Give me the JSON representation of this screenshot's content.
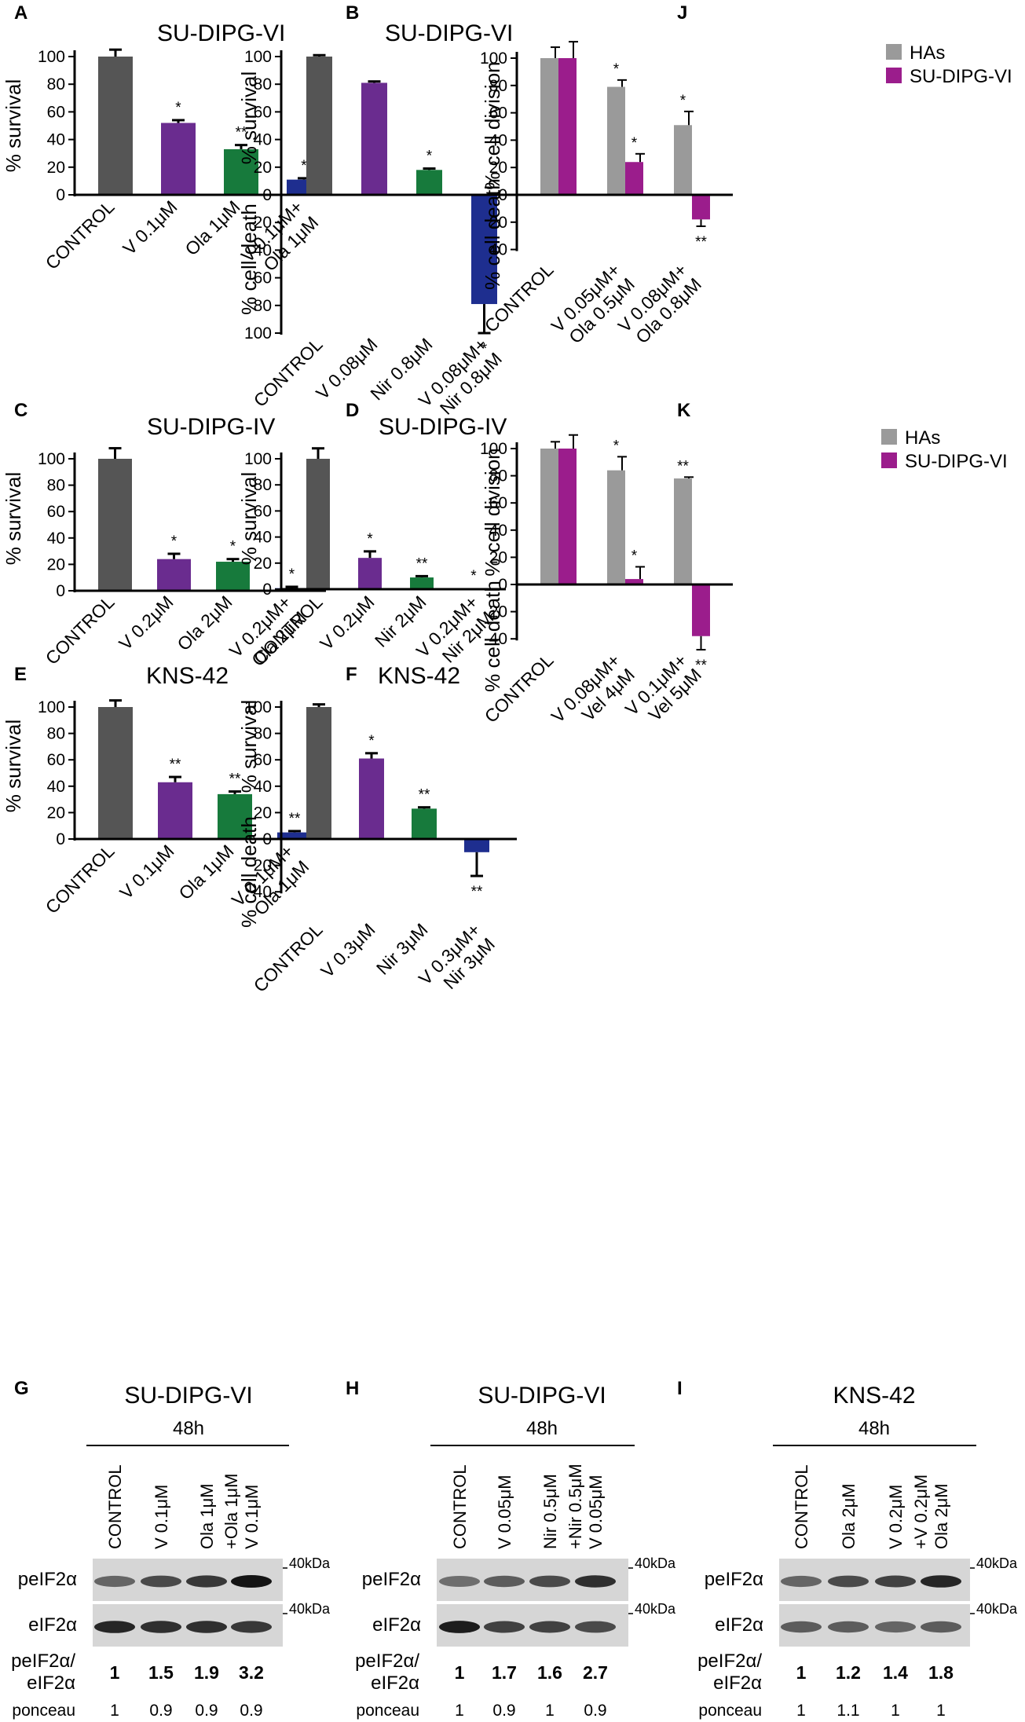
{
  "figure": {
    "units": {
      "uM": "μM",
      "alpha": "α"
    }
  },
  "chart_data": [
    {
      "panel": "A",
      "type": "bar",
      "title": "SU-DIPG-VI",
      "ylabel": "% survival",
      "ylim": [
        0,
        100
      ],
      "yticks": [
        0,
        20,
        40,
        60,
        80,
        100
      ],
      "categories": [
        "CONTROL",
        "V 0.1μM",
        "Ola 1μM",
        "V 0.1μM+\nOla 1μM"
      ],
      "values": [
        100,
        52,
        33,
        11
      ],
      "errors": [
        5,
        2,
        3,
        1
      ],
      "sig": [
        "",
        "*",
        "**",
        "*"
      ],
      "colors": [
        "#555555",
        "#6a2c8f",
        "#177a3c",
        "#1e2e8f"
      ]
    },
    {
      "panel": "B",
      "type": "bar",
      "title": "SU-DIPG-VI",
      "ylabel": "% survival",
      "ylabel2": "% cell death",
      "ylim": [
        -100,
        100
      ],
      "yticks": [
        100,
        80,
        60,
        40,
        20,
        0,
        -20,
        -40,
        -60,
        -80,
        -100
      ],
      "categories": [
        "CONTROL",
        "V 0.08μM",
        "Nir 0.8μM",
        "V 0.08μM+\nNir 0.8μM"
      ],
      "values": [
        100,
        81,
        18,
        -79
      ],
      "errors": [
        1,
        1,
        1,
        21
      ],
      "sig": [
        "",
        "",
        "*",
        "*"
      ],
      "colors": [
        "#555555",
        "#6a2c8f",
        "#177a3c",
        "#1e2e8f"
      ]
    },
    {
      "panel": "C",
      "type": "bar",
      "title": "SU-DIPG-IV",
      "ylabel": "% survival",
      "ylim": [
        0,
        100
      ],
      "yticks": [
        0,
        20,
        40,
        60,
        80,
        100
      ],
      "categories": [
        "CONTROL",
        "V 0.2μM",
        "Ola 2μM",
        "V 0.2μM+\nOla 2μM"
      ],
      "values": [
        100,
        24,
        22,
        2
      ],
      "errors": [
        8,
        4,
        2,
        1
      ],
      "sig": [
        "",
        "*",
        "*",
        "*"
      ],
      "colors": [
        "#555555",
        "#6a2c8f",
        "#177a3c",
        "#1e2e8f"
      ]
    },
    {
      "panel": "D",
      "type": "bar",
      "title": "SU-DIPG-IV",
      "ylabel": "% survival",
      "ylim": [
        0,
        100
      ],
      "yticks": [
        0,
        20,
        40,
        60,
        80,
        100
      ],
      "categories": [
        "CONTROL",
        "V 0.2μM",
        "Nir 2μM",
        "V 0.2μM+\nNir 2μM"
      ],
      "values": [
        100,
        24,
        9,
        0.5
      ],
      "errors": [
        8,
        5,
        1,
        0
      ],
      "sig": [
        "",
        "*",
        "**",
        "*"
      ],
      "colors": [
        "#555555",
        "#6a2c8f",
        "#177a3c",
        "#1e2e8f"
      ]
    },
    {
      "panel": "E",
      "type": "bar",
      "title": "KNS-42",
      "ylabel": "% survival",
      "ylim": [
        0,
        100
      ],
      "yticks": [
        0,
        20,
        40,
        60,
        80,
        100
      ],
      "categories": [
        "CONTROL",
        "V 0.1μM",
        "Ola 1μM",
        "V 0.1μM+\nOla 1μM"
      ],
      "values": [
        100,
        43,
        34,
        5
      ],
      "errors": [
        5,
        4,
        2,
        1
      ],
      "sig": [
        "",
        "**",
        "**",
        "**"
      ],
      "colors": [
        "#555555",
        "#6a2c8f",
        "#177a3c",
        "#1e2e8f"
      ]
    },
    {
      "panel": "F",
      "type": "bar",
      "title": "KNS-42",
      "ylabel": "% survival",
      "ylabel2": "% cell death",
      "ylim": [
        -40,
        100
      ],
      "yticks": [
        100,
        80,
        60,
        40,
        20,
        0,
        -20,
        -40
      ],
      "categories": [
        "CONTROL",
        "V 0.3μM",
        "Nir 3μM",
        "V 0.3μM+\nNir 3μM"
      ],
      "values": [
        100,
        61,
        23,
        -10
      ],
      "errors": [
        2,
        4,
        1,
        18
      ],
      "sig": [
        "",
        "*",
        "**",
        "**"
      ],
      "colors": [
        "#555555",
        "#6a2c8f",
        "#177a3c",
        "#1e2e8f"
      ]
    },
    {
      "panel": "J",
      "type": "bar",
      "title": "",
      "ylabel": "% cell division",
      "ylabel2": "% cell death",
      "ylim": [
        -40,
        100
      ],
      "yticks": [
        100,
        80,
        60,
        40,
        20,
        0,
        -20,
        -40
      ],
      "categories": [
        "CONTROL",
        "V 0.05μM+\nOla 0.5μM",
        "V 0.08μM+\nOla 0.8μM"
      ],
      "series": [
        {
          "name": "HAs",
          "color": "#9a9a9a",
          "values": [
            100,
            79,
            51
          ],
          "errors": [
            8,
            5,
            10
          ],
          "sig": [
            "",
            "*",
            "*"
          ]
        },
        {
          "name": "SU-DIPG-VI",
          "color": "#9b1d8c",
          "values": [
            100,
            24,
            -18
          ],
          "errors": [
            12,
            6,
            5
          ],
          "sig": [
            "",
            "*",
            "**"
          ]
        }
      ],
      "legend": "top-right"
    },
    {
      "panel": "K",
      "type": "bar",
      "title": "",
      "ylabel": "% cell division",
      "ylabel2": "% cell death",
      "ylim": [
        -40,
        100
      ],
      "yticks": [
        100,
        80,
        60,
        40,
        20,
        0,
        -20,
        -40
      ],
      "categories": [
        "CONTROL",
        "V 0.08μM+\nVel 4μM",
        "V 0.1μM+\nVel 5μM"
      ],
      "series": [
        {
          "name": "HAs",
          "color": "#9a9a9a",
          "values": [
            100,
            84,
            78
          ],
          "errors": [
            5,
            10,
            1
          ],
          "sig": [
            "",
            "*",
            "**"
          ]
        },
        {
          "name": "SU-DIPG-VI",
          "color": "#9b1d8c",
          "values": [
            100,
            4,
            -38
          ],
          "errors": [
            10,
            9,
            10
          ],
          "sig": [
            "",
            "*",
            "**"
          ]
        }
      ],
      "legend": "top-right"
    }
  ],
  "blots": [
    {
      "panel": "G",
      "title": "SU-DIPG-VI",
      "time": "48h",
      "lanes": [
        "CONTROL",
        "V 0.1μM",
        "Ola 1μM",
        "V 0.1μM\n+Ola 1μM"
      ],
      "rows": [
        "peIF2α",
        "eIF2α"
      ],
      "marker": "40kDa",
      "ratio_label": "peIF2α/\neIF2α",
      "ratio": [
        "1",
        "1.5",
        "1.9",
        "3.2"
      ],
      "ponceau_label": "ponceau",
      "ponceau": [
        "1",
        "0.9",
        "0.9",
        "0.9"
      ],
      "p_intensity": [
        0.55,
        0.7,
        0.8,
        1.0
      ],
      "e_intensity": [
        0.9,
        0.85,
        0.85,
        0.8
      ]
    },
    {
      "panel": "H",
      "title": "SU-DIPG-VI",
      "time": "48h",
      "lanes": [
        "CONTROL",
        "V 0.05μM",
        "Nir 0.5μM",
        "V 0.05μM\n+Nir 0.5μM"
      ],
      "rows": [
        "peIF2α",
        "eIF2α"
      ],
      "marker": "40kDa",
      "ratio_label": "peIF2α/\neIF2α",
      "ratio": [
        "1",
        "1.7",
        "1.6",
        "2.7"
      ],
      "ponceau_label": "ponceau",
      "ponceau": [
        "1",
        "0.9",
        "1",
        "0.9"
      ],
      "p_intensity": [
        0.5,
        0.6,
        0.7,
        0.85
      ],
      "e_intensity": [
        0.95,
        0.75,
        0.75,
        0.7
      ]
    },
    {
      "panel": "I",
      "title": "KNS-42",
      "time": "48h",
      "lanes": [
        "CONTROL",
        "Ola 2μM",
        "V 0.2μM",
        "Ola 2μM\n+V 0.2μM"
      ],
      "rows": [
        "peIF2α",
        "eIF2α"
      ],
      "marker": "40kDa",
      "ratio_label": "peIF2α/\neIF2α",
      "ratio": [
        "1",
        "1.2",
        "1.4",
        "1.8"
      ],
      "ponceau_label": "ponceau",
      "ponceau": [
        "1",
        "1.1",
        "1",
        "1"
      ],
      "p_intensity": [
        0.55,
        0.7,
        0.75,
        0.9
      ],
      "e_intensity": [
        0.6,
        0.6,
        0.55,
        0.6
      ]
    }
  ]
}
